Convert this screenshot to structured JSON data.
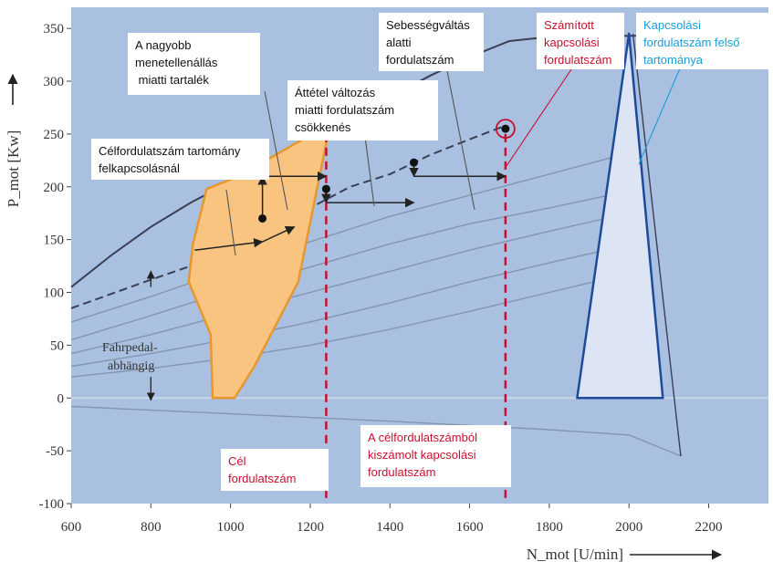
{
  "chart_data": {
    "type": "line",
    "title": "",
    "xlabel": "N_mot [U/min]",
    "ylabel": "P_mot [Kw]",
    "xlim": [
      600,
      2350
    ],
    "ylim": [
      -100,
      370
    ],
    "xticks": [
      600,
      800,
      1000,
      1200,
      1400,
      1600,
      1800,
      2000,
      2200
    ],
    "yticks": [
      -100,
      -50,
      0,
      50,
      100,
      150,
      200,
      250,
      300,
      350
    ],
    "grid": false,
    "legend": "none",
    "colors": {
      "plot_background": "#a9c0e0",
      "full_load_curve": "#3b3f55",
      "part_load_curve": "#8494ae",
      "target_speed_band": "#f8c480",
      "target_speed_band_edge": "#e8972c",
      "upper_shift_band": "#dde5f5",
      "upper_shift_band_edge": "#1e4a9a",
      "annotation_red": "#c8102e",
      "annotation_blue": "#1a9cd8"
    },
    "series": [
      {
        "role": "full-load",
        "x": [
          600,
          700,
          800,
          900,
          1000,
          1100,
          1200,
          1300,
          1400,
          1500,
          1600,
          1700,
          1800,
          2000,
          2150
        ],
        "y": [
          105,
          135,
          162,
          185,
          205,
          225,
          245,
          265,
          285,
          305,
          323,
          338,
          342,
          343,
          343
        ]
      },
      {
        "role": "dashed-shift-path",
        "x": [
          600,
          800,
          1000,
          1100,
          1200,
          1300,
          1400,
          1500,
          1600,
          1690
        ],
        "y": [
          85,
          112,
          138,
          155,
          180,
          200,
          212,
          230,
          245,
          258
        ]
      },
      {
        "role": "part-load",
        "x": [
          600,
          800,
          1000,
          1200,
          1400,
          1600,
          1800,
          2000
        ],
        "y": [
          72,
          96,
          122,
          148,
          172,
          192,
          212,
          232
        ]
      },
      {
        "role": "part-load",
        "x": [
          600,
          800,
          1000,
          1200,
          1400,
          1600,
          1800,
          2000
        ],
        "y": [
          55,
          78,
          102,
          124,
          146,
          165,
          180,
          196
        ]
      },
      {
        "role": "part-load",
        "x": [
          600,
          800,
          1000,
          1200,
          1400,
          1600,
          1800,
          2000
        ],
        "y": [
          42,
          60,
          80,
          100,
          120,
          140,
          158,
          175
        ]
      },
      {
        "role": "part-load",
        "x": [
          600,
          800,
          1000,
          1200,
          1400,
          1600,
          1800,
          2000
        ],
        "y": [
          30,
          42,
          56,
          72,
          90,
          110,
          128,
          145
        ]
      },
      {
        "role": "part-load",
        "x": [
          600,
          800,
          1000,
          1200,
          1400,
          1600,
          1800,
          2000
        ],
        "y": [
          20,
          28,
          38,
          50,
          65,
          82,
          100,
          118
        ]
      },
      {
        "role": "drag",
        "x": [
          600,
          1000,
          1400,
          1800,
          2000,
          2130
        ],
        "y": [
          -8,
          -15,
          -22,
          -30,
          -35,
          -55
        ]
      }
    ],
    "points": [
      {
        "x": 1080,
        "y": 170
      },
      {
        "x": 1240,
        "y": 198
      },
      {
        "x": 1460,
        "y": 223
      },
      {
        "x": 1690,
        "y": 255
      }
    ],
    "annotations": {
      "reserve": "A nagyobb menetellenállás miatti tartalék",
      "ratio_change": "Áttétel változás miatti fordulatszám csökkenés",
      "shift_speed": "Sebességváltás alatti fordulatszám",
      "computed_shift_speed": "Számított kapcsolási fordulatszám",
      "upper_shift_range": "Kapcsolási fordulatszám felső tartománya",
      "target_band_upshift": "Célfordulatszám tartomány felkapcsolásnál",
      "target_speed": "Cél fordulatszám",
      "shift_from_target": "A célfordulatszámból kiszámolt kapcsolási fordulatszám",
      "pedal_dependent": "Fahrpedal-abhängig"
    }
  }
}
